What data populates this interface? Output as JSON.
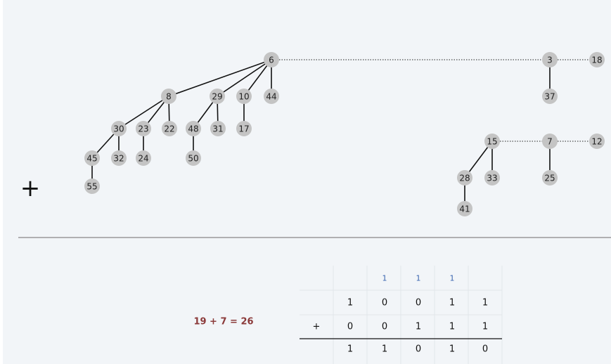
{
  "heap_a": {
    "roots": [
      "6",
      "3",
      "18"
    ],
    "trees": [
      {
        "root": "6",
        "children": [
          "8",
          "29",
          "10",
          "44"
        ]
      },
      {
        "root": "8",
        "children": [
          "30",
          "23",
          "22"
        ]
      },
      {
        "root": "29",
        "children": [
          "48",
          "31"
        ]
      },
      {
        "root": "10",
        "children": [
          "17"
        ]
      },
      {
        "root": "30",
        "children": [
          "45",
          "32"
        ]
      },
      {
        "root": "23",
        "children": [
          "24"
        ]
      },
      {
        "root": "48",
        "children": [
          "50"
        ]
      },
      {
        "root": "45",
        "children": [
          "55"
        ]
      },
      {
        "root": "3",
        "children": [
          "37"
        ]
      }
    ]
  },
  "heap_b": {
    "roots": [
      "15",
      "7",
      "12"
    ],
    "trees": [
      {
        "root": "15",
        "children": [
          "28",
          "33"
        ]
      },
      {
        "root": "28",
        "children": [
          "41"
        ]
      },
      {
        "root": "7",
        "children": [
          "25"
        ]
      }
    ]
  },
  "plus_symbol": "+",
  "equation": "19 + 7 = 26",
  "addition_table": {
    "operator": "+",
    "carry": [
      "",
      "",
      "1",
      "1",
      "1",
      ""
    ],
    "row_a": [
      "",
      "1",
      "0",
      "0",
      "1",
      "1"
    ],
    "row_b": [
      "+",
      "0",
      "0",
      "1",
      "1",
      "1"
    ],
    "sum": [
      "",
      "1",
      "1",
      "0",
      "1",
      "0"
    ]
  }
}
